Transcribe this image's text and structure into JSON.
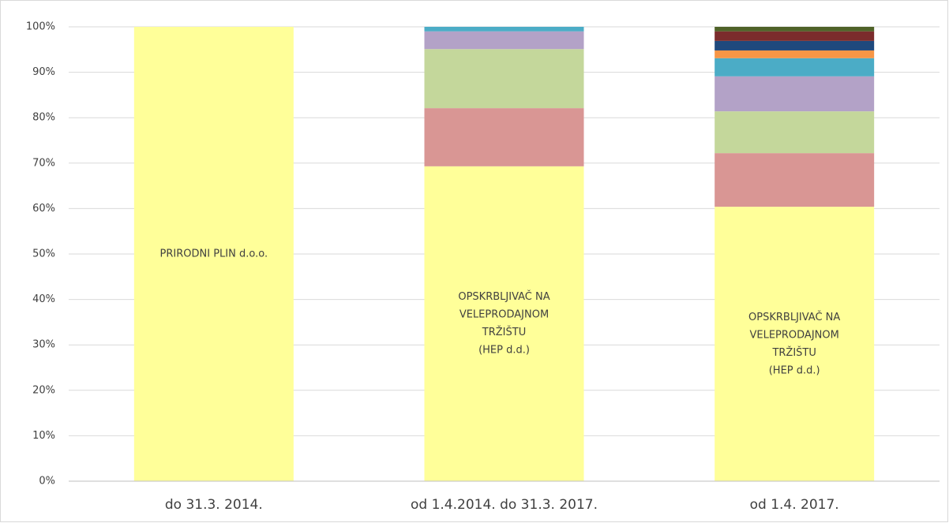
{
  "chart_data": {
    "type": "stacked_bar",
    "categories": [
      "do 31.3. 2014.",
      "od 1.4.2014. do 31.3. 2017.",
      "od 1.4. 2017."
    ],
    "series": [
      {
        "color": "#ffff99",
        "values": [
          100,
          69.3,
          60.4
        ]
      },
      {
        "color": "#d99694",
        "values": [
          null,
          12.8,
          11.8
        ]
      },
      {
        "color": "#c4d79b",
        "values": [
          null,
          13,
          9.2
        ]
      },
      {
        "color": "#b3a2c7",
        "values": [
          null,
          3.9,
          7.7
        ]
      },
      {
        "color": "#4bacc6",
        "values": [
          null,
          1,
          4
        ]
      },
      {
        "color": "#f79646",
        "values": [
          null,
          null,
          1.7
        ]
      },
      {
        "color": "#1f497d",
        "values": [
          null,
          null,
          2.1
        ]
      },
      {
        "color": "#7b2c2c",
        "values": [
          null,
          null,
          2.1
        ]
      },
      {
        "color": "#4f6228",
        "values": [
          null,
          null,
          1
        ]
      }
    ],
    "annotations": [
      [
        "PRIRODNI PLIN d.o.o."
      ],
      [
        "OPSKRBLJIVAČ NA",
        "VELEPRODAJNOM",
        "TRŽIŠTU",
        "(HEP d.d.)"
      ],
      [
        "OPSKRBLJIVAČ NA",
        "VELEPRODAJNOM",
        "TRŽIŠTU",
        "(HEP d.d.)"
      ]
    ],
    "ylim": [
      0,
      100
    ],
    "yticks": [
      {
        "value": 0,
        "label": "0%"
      },
      {
        "value": 10,
        "label": "10%"
      },
      {
        "value": 20,
        "label": "20%"
      },
      {
        "value": 30,
        "label": "30%"
      },
      {
        "value": 40,
        "label": "40%"
      },
      {
        "value": 50,
        "label": "50%"
      },
      {
        "value": 60,
        "label": "60%"
      },
      {
        "value": 70,
        "label": "70%"
      },
      {
        "value": 80,
        "label": "80%"
      },
      {
        "value": 90,
        "label": "90%"
      },
      {
        "value": 100,
        "label": "100%"
      }
    ],
    "grid": true
  }
}
